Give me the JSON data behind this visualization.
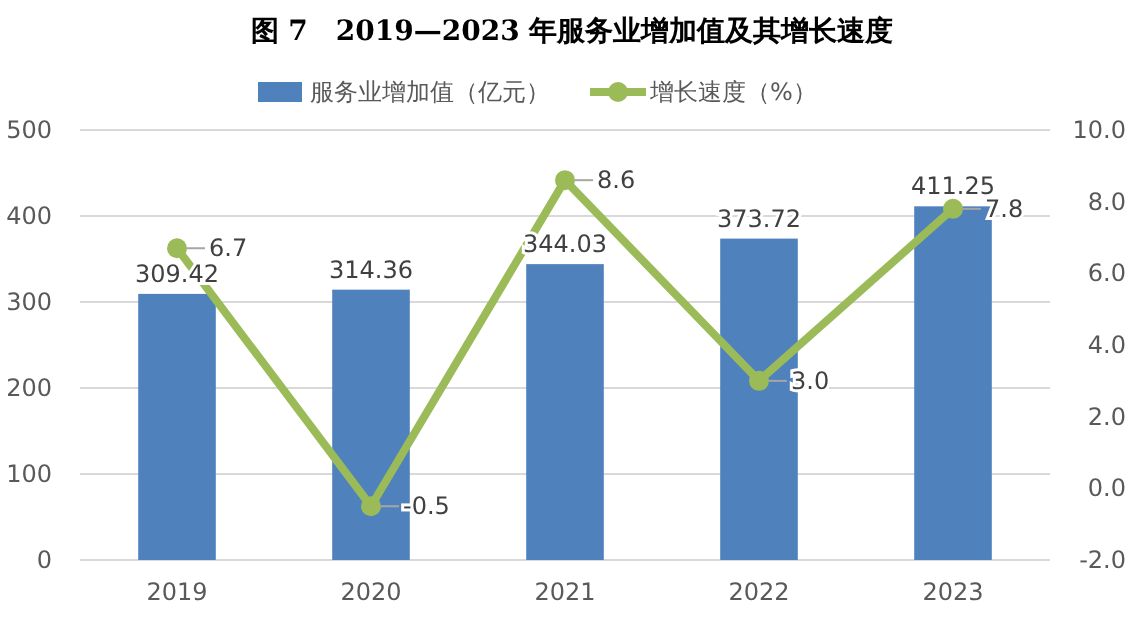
{
  "chart_data": {
    "type": "bar",
    "title": "图 7　2019—2023 年服务业增加值及其增长速度",
    "categories": [
      "2019",
      "2020",
      "2021",
      "2022",
      "2023"
    ],
    "series": [
      {
        "name": "服务业增加值（亿元）",
        "color": "#4f81bd",
        "values": [
          309.42,
          314.36,
          344.03,
          373.72,
          411.25
        ],
        "value_labels": [
          "309.42",
          "314.36",
          "344.03",
          "373.72",
          "411.25"
        ]
      },
      {
        "name": "增长速度（%）",
        "type": "line",
        "axis": "y2",
        "color": "#9bbb59",
        "marker": "circle",
        "values": [
          6.7,
          -0.5,
          8.6,
          3.0,
          7.8
        ],
        "value_labels": [
          "6.7",
          "-0.5",
          "8.6",
          "3.0",
          "7.8"
        ]
      }
    ],
    "ylim": [
      0,
      500
    ],
    "yticks": [
      0,
      100,
      200,
      300,
      400,
      500
    ],
    "y2lim": [
      -2,
      10
    ],
    "y2ticks": [
      {
        "value": -2,
        "label": "-2.0"
      },
      {
        "value": 0,
        "label": "0.0"
      },
      {
        "value": 2,
        "label": "2.0"
      },
      {
        "value": 4,
        "label": "4.0"
      },
      {
        "value": 6,
        "label": "6.0"
      },
      {
        "value": 8,
        "label": "8.0"
      },
      {
        "value": 10,
        "label": "10.0"
      }
    ],
    "grid": "y",
    "legend": "top"
  }
}
